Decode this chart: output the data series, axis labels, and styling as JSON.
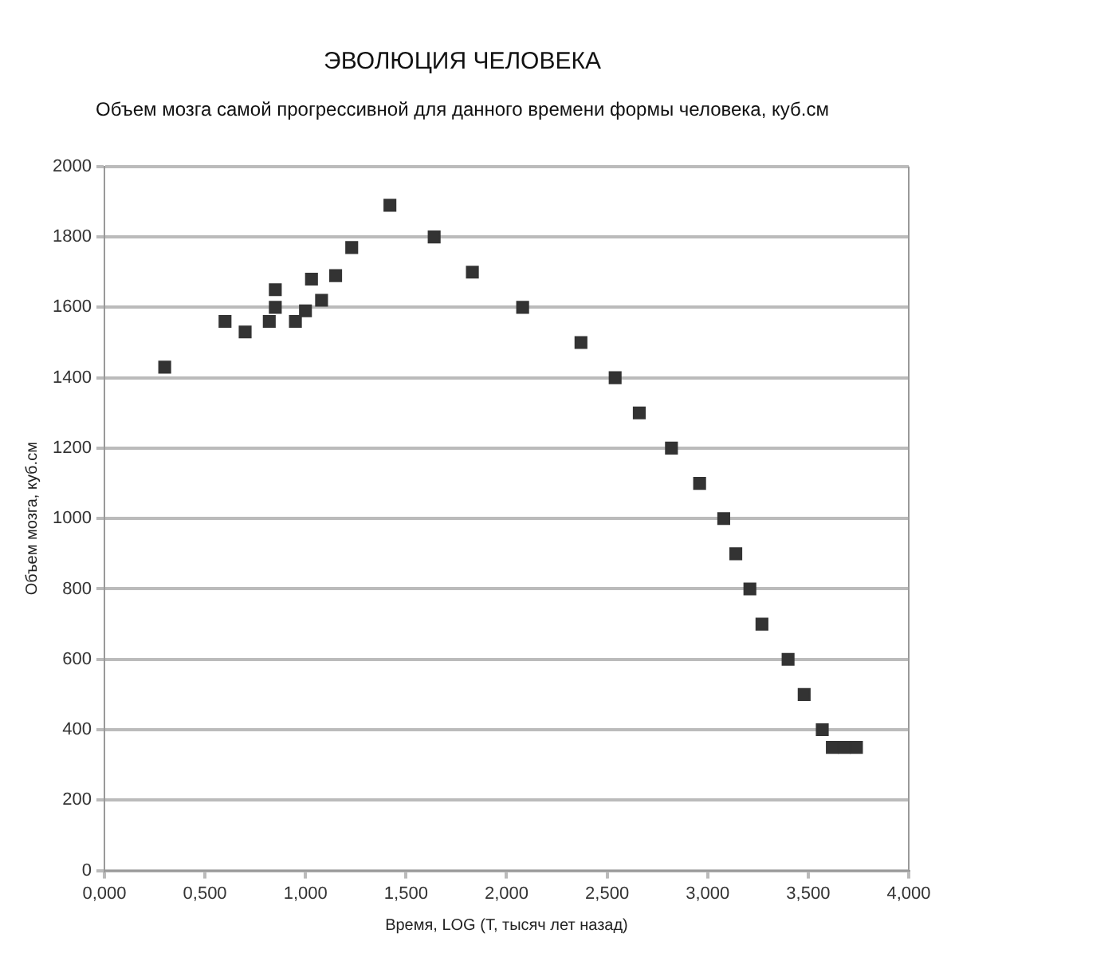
{
  "chart_data": {
    "type": "scatter",
    "title": "ЭВОЛЮЦИЯ ЧЕЛОВЕКА",
    "subtitle": "Объем мозга самой прогрессивной для данного времени формы человека, куб.см",
    "xlabel": "Время, LOG (T, тысяч лет назад)",
    "ylabel": "Объем мозга, куб.см",
    "marker": "square",
    "grid": "y",
    "legend": false,
    "xlim": [
      0,
      4
    ],
    "xticks": [
      {
        "value": 0,
        "label": "0,000"
      },
      {
        "value": 0.5,
        "label": "0,500"
      },
      {
        "value": 1,
        "label": "1,000"
      },
      {
        "value": 1.5,
        "label": "1,500"
      },
      {
        "value": 2,
        "label": "2,000"
      },
      {
        "value": 2.5,
        "label": "2,500"
      },
      {
        "value": 3,
        "label": "3,000"
      },
      {
        "value": 3.5,
        "label": "3,500"
      },
      {
        "value": 4,
        "label": "4,000"
      }
    ],
    "ylim": [
      0,
      2000
    ],
    "yticks": [
      0,
      200,
      400,
      600,
      800,
      1000,
      1200,
      1400,
      1600,
      1800,
      2000
    ],
    "series": [
      {
        "color": "#333333",
        "x": [
          0.3,
          0.6,
          0.7,
          0.82,
          0.85,
          0.85,
          0.95,
          1.0,
          1.03,
          1.08,
          1.15,
          1.23,
          1.42,
          1.64,
          1.83,
          2.08,
          2.37,
          2.54,
          2.66,
          2.82,
          2.96,
          3.08,
          3.14,
          3.21,
          3.27,
          3.4,
          3.48,
          3.57,
          3.62,
          3.68,
          3.74
        ],
        "values": [
          1430,
          1560,
          1530,
          1560,
          1650,
          1600,
          1560,
          1590,
          1680,
          1620,
          1690,
          1770,
          1890,
          1800,
          1700,
          1600,
          1500,
          1400,
          1300,
          1200,
          1100,
          1000,
          900,
          800,
          700,
          600,
          500,
          400,
          350,
          350,
          350
        ]
      }
    ]
  }
}
